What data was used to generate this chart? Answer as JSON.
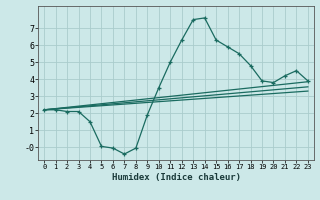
{
  "xlabel": "Humidex (Indice chaleur)",
  "bg_color": "#cce8e8",
  "line_color": "#1a6b60",
  "xlim": [
    -0.5,
    23.5
  ],
  "ylim": [
    -0.75,
    8.3
  ],
  "yticks": [
    0,
    1,
    2,
    3,
    4,
    5,
    6,
    7
  ],
  "ytick_labels": [
    "-0",
    "1",
    "2",
    "3",
    "4",
    "5",
    "6",
    "7"
  ],
  "xticks": [
    0,
    1,
    2,
    3,
    4,
    5,
    6,
    7,
    8,
    9,
    10,
    11,
    12,
    13,
    14,
    15,
    16,
    17,
    18,
    19,
    20,
    21,
    22,
    23
  ],
  "line1_x": [
    0,
    1,
    2,
    3,
    4,
    5,
    6,
    7,
    8,
    9,
    10,
    11,
    12,
    13,
    14,
    15,
    16,
    17,
    18,
    19,
    20,
    21,
    22,
    23
  ],
  "line1_y": [
    2.2,
    2.2,
    2.1,
    2.1,
    1.5,
    0.05,
    -0.05,
    -0.4,
    -0.05,
    1.9,
    3.5,
    5.0,
    6.3,
    7.5,
    7.6,
    6.3,
    5.9,
    5.5,
    4.8,
    3.9,
    3.8,
    4.2,
    4.5,
    3.9
  ],
  "line2_x": [
    0,
    23
  ],
  "line2_y": [
    2.2,
    3.85
  ],
  "line3_x": [
    0,
    23
  ],
  "line3_y": [
    2.2,
    3.55
  ],
  "line4_x": [
    0,
    23
  ],
  "line4_y": [
    2.2,
    3.3
  ]
}
